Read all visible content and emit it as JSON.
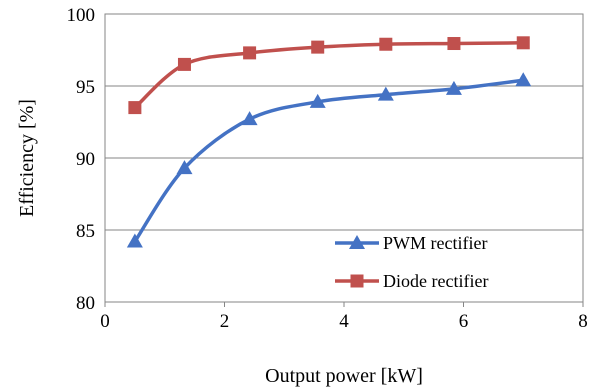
{
  "chart_data": {
    "type": "line",
    "title": "",
    "xlabel": "Output power [kW]",
    "ylabel": "Efficiency [%]",
    "xlim": [
      0,
      8
    ],
    "ylim": [
      80,
      100
    ],
    "xticks": [
      0,
      2,
      4,
      6,
      8
    ],
    "yticks": [
      80,
      85,
      90,
      95,
      100
    ],
    "grid": "horizontal",
    "legend_position": "bottom-right",
    "series": [
      {
        "name": "PWM rectifier",
        "color": "#4472C4",
        "marker": "triangle",
        "x": [
          0.5,
          1.33,
          2.42,
          3.56,
          4.7,
          5.84,
          7.0
        ],
        "y": [
          84.2,
          89.3,
          92.7,
          93.9,
          94.4,
          94.8,
          95.4
        ]
      },
      {
        "name": "Diode rectifier",
        "color": "#C0504D",
        "marker": "square",
        "x": [
          0.5,
          1.33,
          2.42,
          3.56,
          4.7,
          5.84,
          7.0
        ],
        "y": [
          93.5,
          96.5,
          97.3,
          97.7,
          97.9,
          97.95,
          98.0
        ]
      }
    ]
  }
}
